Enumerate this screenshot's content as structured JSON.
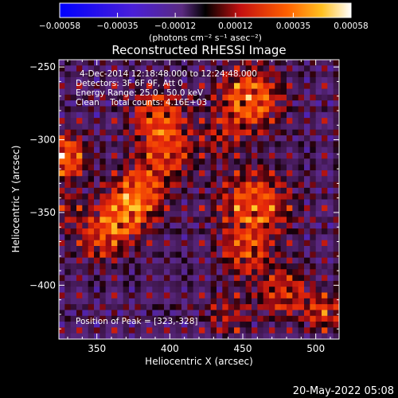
{
  "chart_data": {
    "type": "heatmap",
    "title": "Reconstructed RHESSI Image",
    "xlabel": "Heliocentric X (arcsec)",
    "ylabel": "Heliocentric Y (arcsec)",
    "xlim": [
      324,
      516
    ],
    "ylim": [
      -437,
      -245
    ],
    "x_ticks": [
      350,
      400,
      450,
      500
    ],
    "y_ticks": [
      -250,
      -300,
      -350,
      -400
    ],
    "colorbar": {
      "range": [
        -0.00058,
        0.00058
      ],
      "tick_values": [
        -0.00058,
        -0.00035,
        -0.00012,
        0.00012,
        0.00035,
        0.00058
      ],
      "tick_labels": [
        "-0.00058",
        "-0.00035",
        "-0.00012",
        "0.00012",
        "0.00035",
        "0.00058"
      ],
      "unit_label": "(photons cm⁻² s⁻¹ asec⁻²)"
    },
    "header_lines": [
      "4-Dec-2014 12:18:48.000 to 12:24:48.000",
      "Detectors: 3F 6F 9F, Att 0",
      "Energy Range: 25.0 - 50.0 keV",
      "Clean    Total counts: 4.16E+03"
    ],
    "peak_label": "Position of Peak = [323,-328]",
    "sources": [
      {
        "x": 455,
        "y": -272,
        "amplitude": 0.00052,
        "sigma": 14
      },
      {
        "x": 435,
        "y": -298,
        "amplitude": 0.0002,
        "sigma": 10
      },
      {
        "x": 392,
        "y": -283,
        "amplitude": 0.00038,
        "sigma": 12
      },
      {
        "x": 398,
        "y": -308,
        "amplitude": 0.00036,
        "sigma": 13
      },
      {
        "x": 380,
        "y": -335,
        "amplitude": 0.0004,
        "sigma": 12
      },
      {
        "x": 368,
        "y": -352,
        "amplitude": 0.00045,
        "sigma": 12
      },
      {
        "x": 352,
        "y": -368,
        "amplitude": 0.00032,
        "sigma": 11
      },
      {
        "x": 327,
        "y": -312,
        "amplitude": 0.00058,
        "sigma": 10
      },
      {
        "x": 328,
        "y": -348,
        "amplitude": 0.0002,
        "sigma": 9
      },
      {
        "x": 458,
        "y": -345,
        "amplitude": 0.00046,
        "sigma": 16
      },
      {
        "x": 452,
        "y": -378,
        "amplitude": 0.00034,
        "sigma": 11
      },
      {
        "x": 478,
        "y": -405,
        "amplitude": 0.00034,
        "sigma": 12
      },
      {
        "x": 505,
        "y": -418,
        "amplitude": 0.0004,
        "sigma": 8
      },
      {
        "x": 440,
        "y": -420,
        "amplitude": 0.00022,
        "sigma": 10
      }
    ],
    "ripple_amplitude": 0.00022,
    "ripple_period_arcsec": 12
  },
  "footer": {
    "date": "20-May-2022 05:08"
  }
}
